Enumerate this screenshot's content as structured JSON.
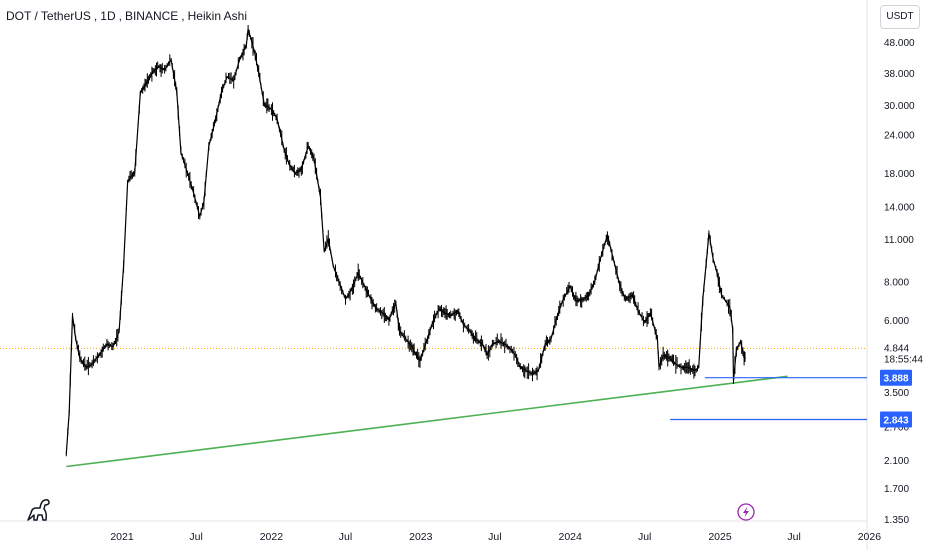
{
  "header": {
    "symbol": "DOT / TetherUS",
    "interval": "1D",
    "exchange": "BINANCE",
    "style": "Heikin Ashi"
  },
  "currency_button": "USDT",
  "countdown": "18:55:44",
  "colors": {
    "price_line": "#000000",
    "trendline": "#4caf50",
    "level_lines": "#2962ff",
    "current_price_dotted": "#f7a600",
    "current_price_label_text": "#131722"
  },
  "icons": {
    "logo": "dinosaur-logo-icon",
    "flash": "lightning-flash-icon"
  },
  "chart_data": {
    "type": "line",
    "yscale": "log",
    "y_ticks": [
      "48.000",
      "38.000",
      "30.000",
      "24.000",
      "18.000",
      "14.000",
      "11.000",
      "8.000",
      "6.000",
      "4.844",
      "3.500",
      "2.700",
      "2.100",
      "1.700",
      "1.350"
    ],
    "x_ticks": [
      "2021",
      "Jul",
      "2022",
      "Jul",
      "2023",
      "Jul",
      "2024",
      "Jul",
      "2025",
      "Jul",
      "2026"
    ],
    "current_price": 4.844,
    "horizontal_levels": [
      {
        "label": "3.888",
        "value": 3.888
      },
      {
        "label": "2.843",
        "value": 2.843
      }
    ],
    "trendline": {
      "from": {
        "date": "2020-08-18",
        "price": 2.0
      },
      "to": {
        "date": "2025-06-15",
        "price": 3.93
      }
    },
    "x": [
      "2020-08-18",
      "2020-08-25",
      "2020-09-02",
      "2020-09-10",
      "2020-09-20",
      "2020-10-05",
      "2020-10-20",
      "2020-11-05",
      "2020-11-25",
      "2020-12-10",
      "2020-12-25",
      "2021-01-05",
      "2021-01-15",
      "2021-02-01",
      "2021-02-15",
      "2021-03-01",
      "2021-03-15",
      "2021-04-01",
      "2021-04-15",
      "2021-05-01",
      "2021-05-15",
      "2021-05-25",
      "2021-06-10",
      "2021-06-25",
      "2021-07-10",
      "2021-07-20",
      "2021-08-01",
      "2021-08-15",
      "2021-09-01",
      "2021-09-15",
      "2021-10-01",
      "2021-10-15",
      "2021-11-01",
      "2021-11-05",
      "2021-11-20",
      "2021-12-01",
      "2021-12-15",
      "2022-01-01",
      "2022-01-15",
      "2022-02-01",
      "2022-02-15",
      "2022-03-01",
      "2022-03-15",
      "2022-04-01",
      "2022-04-15",
      "2022-05-01",
      "2022-05-10",
      "2022-05-20",
      "2022-06-01",
      "2022-06-15",
      "2022-07-01",
      "2022-07-15",
      "2022-08-01",
      "2022-08-15",
      "2022-09-01",
      "2022-09-15",
      "2022-10-01",
      "2022-10-15",
      "2022-11-01",
      "2022-11-10",
      "2022-11-25",
      "2022-12-10",
      "2022-12-30",
      "2023-01-15",
      "2023-02-01",
      "2023-02-15",
      "2023-03-01",
      "2023-03-15",
      "2023-04-01",
      "2023-04-15",
      "2023-05-01",
      "2023-05-15",
      "2023-06-01",
      "2023-06-12",
      "2023-06-25",
      "2023-07-10",
      "2023-07-25",
      "2023-08-10",
      "2023-08-20",
      "2023-09-01",
      "2023-09-15",
      "2023-10-01",
      "2023-10-15",
      "2023-11-01",
      "2023-11-15",
      "2023-12-01",
      "2023-12-15",
      "2024-01-01",
      "2024-01-15",
      "2024-02-01",
      "2024-02-15",
      "2024-03-01",
      "2024-03-15",
      "2024-04-01",
      "2024-04-15",
      "2024-05-01",
      "2024-05-15",
      "2024-06-01",
      "2024-06-15",
      "2024-07-01",
      "2024-07-15",
      "2024-08-01",
      "2024-08-05",
      "2024-08-15",
      "2024-09-01",
      "2024-09-15",
      "2024-10-01",
      "2024-10-15",
      "2024-11-01",
      "2024-11-10",
      "2024-11-20",
      "2024-12-01",
      "2024-12-05",
      "2024-12-15",
      "2024-12-25",
      "2025-01-05",
      "2025-01-15",
      "2025-01-25",
      "2025-02-01",
      "2025-02-03",
      "2025-02-10",
      "2025-02-20",
      "2025-03-01",
      "2025-03-05"
    ],
    "y": [
      2.2,
      3.0,
      6.2,
      5.2,
      4.5,
      4.2,
      4.3,
      4.6,
      5.0,
      4.9,
      5.5,
      9.0,
      17.0,
      18.0,
      33.0,
      35.0,
      38.0,
      40.0,
      39.0,
      42.0,
      33.0,
      21.0,
      18.0,
      15.5,
      13.0,
      14.5,
      22.0,
      26.0,
      33.0,
      37.0,
      36.0,
      42.0,
      47.0,
      53.0,
      45.0,
      38.0,
      30.0,
      29.0,
      27.0,
      21.5,
      19.0,
      18.0,
      18.5,
      22.0,
      20.0,
      15.0,
      10.0,
      11.0,
      9.0,
      8.0,
      7.0,
      7.5,
      8.5,
      7.8,
      7.0,
      6.5,
      6.3,
      6.0,
      6.8,
      5.5,
      5.2,
      4.9,
      4.4,
      5.1,
      6.0,
      6.5,
      6.3,
      6.2,
      6.4,
      5.8,
      5.5,
      5.2,
      5.0,
      4.6,
      5.0,
      5.1,
      5.0,
      4.8,
      4.6,
      4.2,
      4.1,
      4.0,
      4.1,
      5.0,
      5.2,
      6.2,
      7.0,
      7.7,
      6.9,
      7.0,
      7.2,
      8.0,
      9.5,
      11.3,
      9.5,
      7.8,
      7.0,
      7.2,
      6.4,
      5.9,
      6.3,
      5.2,
      4.2,
      4.6,
      4.5,
      4.3,
      4.2,
      4.2,
      4.1,
      4.2,
      7.0,
      10.0,
      11.5,
      9.5,
      8.5,
      7.2,
      6.9,
      6.6,
      5.6,
      3.8,
      4.8,
      5.1,
      4.5,
      4.5
    ]
  }
}
